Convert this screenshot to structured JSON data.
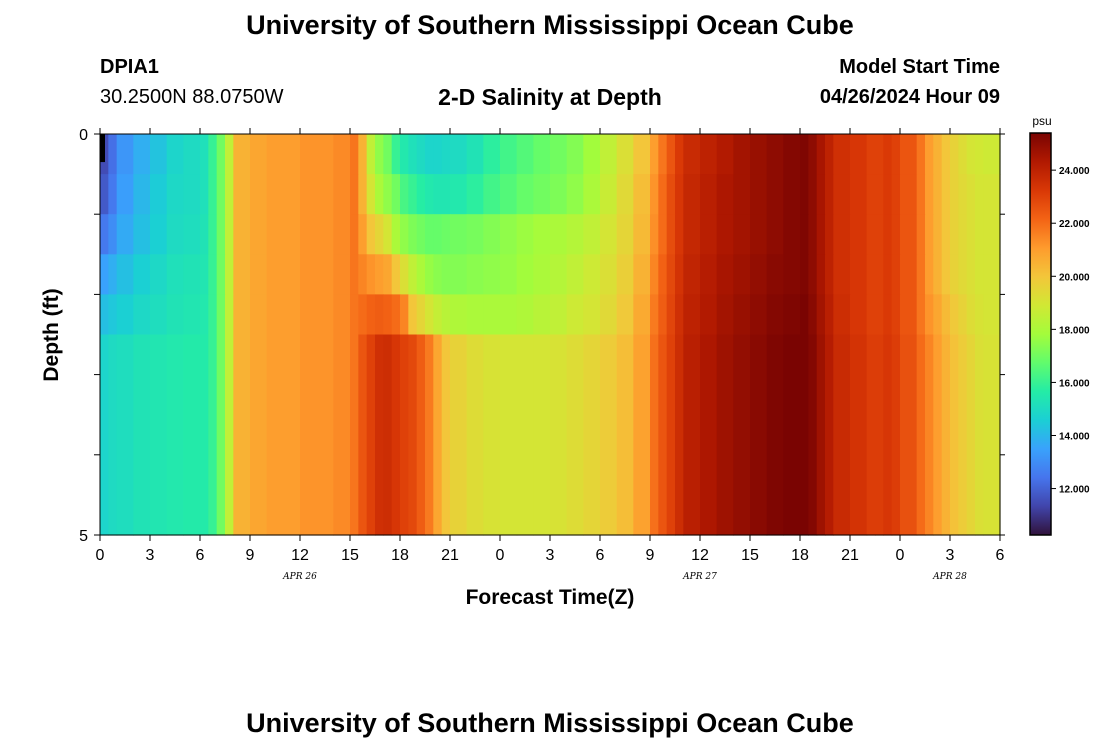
{
  "header": {
    "title": "University of Southern Mississippi Ocean Cube",
    "station": "DPIA1",
    "coords": "30.2500N  88.0750W",
    "subtitle": "2-D Salinity at Depth",
    "model_start_label": "Model Start Time",
    "model_start_value": "04/26/2024 Hour 09"
  },
  "footer": {
    "title": "University of Southern Mississippi Ocean Cube"
  },
  "chart_data": {
    "type": "heatmap",
    "xlabel": "Forecast Time(Z)",
    "ylabel": "Depth (ft)",
    "x_tick_labels": [
      "0",
      "3",
      "6",
      "9",
      "12",
      "15",
      "18",
      "21",
      "0",
      "3",
      "6",
      "9",
      "12",
      "15",
      "18",
      "21",
      "0",
      "3",
      "6"
    ],
    "x_tick_hours": [
      0,
      3,
      6,
      9,
      12,
      15,
      18,
      21,
      24,
      27,
      30,
      33,
      36,
      39,
      42,
      45,
      48,
      51,
      54
    ],
    "date_labels": [
      {
        "text": "APR 26",
        "hour": 12
      },
      {
        "text": "APR 27",
        "hour": 36
      },
      {
        "text": "APR 28",
        "hour": 51
      }
    ],
    "x_range_hours": [
      0,
      54
    ],
    "y_tick_labels": [
      "0",
      "5"
    ],
    "y_range_ft": [
      0,
      5
    ],
    "depth_levels_ft": [
      0.25,
      0.75,
      1.25,
      1.75,
      2.25,
      2.75
    ],
    "colorbar": {
      "unit": "psu",
      "range": [
        10.25,
        25.4
      ],
      "tick_labels": [
        "12.000",
        "14.000",
        "16.000",
        "18.000",
        "20.000",
        "22.000",
        "24.000"
      ],
      "tick_values": [
        12,
        14,
        16,
        18,
        20,
        22,
        24
      ],
      "colors": [
        "#30123b",
        "#4145ab",
        "#4675ed",
        "#39a2fc",
        "#1bcfd4",
        "#24eca6",
        "#61fc6c",
        "#a4fc3b",
        "#d1e834",
        "#f3c63a",
        "#fe9b2d",
        "#f36315",
        "#d93806",
        "#b11901",
        "#7a0402"
      ]
    },
    "times_hours": [
      0,
      0.5,
      1,
      2,
      3,
      4,
      5,
      6,
      6.5,
      7,
      7.5,
      8,
      9,
      10,
      12,
      14,
      15,
      15.5,
      16,
      16.5,
      17,
      17.5,
      18,
      18.5,
      19,
      19.5,
      20,
      20.5,
      21,
      22,
      23,
      24,
      25,
      26,
      27,
      28,
      29,
      30,
      31,
      32,
      33,
      33.5,
      34,
      34.5,
      35,
      36,
      37,
      38,
      39,
      40,
      41,
      42,
      42.5,
      43,
      43.5,
      44,
      45,
      46,
      46.5,
      47,
      47.5,
      48,
      49,
      49.5,
      50,
      50.5,
      51,
      51.5,
      52,
      52.5,
      53,
      54
    ],
    "salinity_psu": [
      [
        11.5,
        12.3,
        13.2,
        13.8,
        14.3,
        14.8,
        15.0,
        15.2,
        16.0,
        17.0,
        18.5,
        20.5,
        20.8,
        21.0,
        21.2,
        21.4,
        21.8,
        20.5,
        18.5,
        17.5,
        17.0,
        16.0,
        15.5,
        15.2,
        15.0,
        14.8,
        14.8,
        14.9,
        15.0,
        15.3,
        15.8,
        16.2,
        16.5,
        16.8,
        17.0,
        17.3,
        17.8,
        18.5,
        19.2,
        20.0,
        21.0,
        21.8,
        22.5,
        23.2,
        23.7,
        24.0,
        24.3,
        24.6,
        24.8,
        25.0,
        25.2,
        25.3,
        25.0,
        24.5,
        24.0,
        23.5,
        23.3,
        23.0,
        23.0,
        23.2,
        23.0,
        22.5,
        21.8,
        21.0,
        20.5,
        20.0,
        19.6,
        19.3,
        19.0,
        18.9,
        18.8,
        18.8
      ],
      [
        11.8,
        12.5,
        13.4,
        14.0,
        14.5,
        14.9,
        15.0,
        15.2,
        16.0,
        17.0,
        18.5,
        20.5,
        20.8,
        21.0,
        21.2,
        21.4,
        21.8,
        20.5,
        19.0,
        18.0,
        17.5,
        17.0,
        16.3,
        16.0,
        15.7,
        15.5,
        15.4,
        15.4,
        15.5,
        15.8,
        16.2,
        16.5,
        16.8,
        17.0,
        17.2,
        17.5,
        18.0,
        18.7,
        19.4,
        20.2,
        21.2,
        22.0,
        22.7,
        23.3,
        23.8,
        24.1,
        24.4,
        24.6,
        24.8,
        25.0,
        25.2,
        25.3,
        25.0,
        24.5,
        24.0,
        23.5,
        23.3,
        23.0,
        23.0,
        23.2,
        23.0,
        22.5,
        21.8,
        21.0,
        20.5,
        20.0,
        19.6,
        19.4,
        19.2,
        19.0,
        19.0,
        19.0
      ],
      [
        12.5,
        13.0,
        13.7,
        14.2,
        14.6,
        15.0,
        15.1,
        15.3,
        16.0,
        17.0,
        18.5,
        20.5,
        20.8,
        21.0,
        21.2,
        21.4,
        21.8,
        21.0,
        20.0,
        19.5,
        19.0,
        18.0,
        17.5,
        17.2,
        17.0,
        16.8,
        16.8,
        16.9,
        17.0,
        17.1,
        17.3,
        17.5,
        17.7,
        17.9,
        18.0,
        18.2,
        18.5,
        19.0,
        19.5,
        20.3,
        21.3,
        22.0,
        22.7,
        23.3,
        23.8,
        24.1,
        24.4,
        24.6,
        24.8,
        25.0,
        25.2,
        25.3,
        25.0,
        24.5,
        24.0,
        23.5,
        23.3,
        23.0,
        23.0,
        23.2,
        23.0,
        22.5,
        21.8,
        21.0,
        20.5,
        20.0,
        19.6,
        19.4,
        19.2,
        19.0,
        19.0,
        19.0
      ],
      [
        13.5,
        13.8,
        14.2,
        14.6,
        14.9,
        15.2,
        15.3,
        15.4,
        16.0,
        17.0,
        18.5,
        20.5,
        20.8,
        21.0,
        21.2,
        21.4,
        21.8,
        21.5,
        21.2,
        21.0,
        20.8,
        20.0,
        19.2,
        18.5,
        18.0,
        17.6,
        17.4,
        17.3,
        17.3,
        17.4,
        17.5,
        17.6,
        17.8,
        18.0,
        18.2,
        18.5,
        18.8,
        19.2,
        19.7,
        20.5,
        21.5,
        22.2,
        22.8,
        23.4,
        23.9,
        24.2,
        24.5,
        24.7,
        24.9,
        25.1,
        25.2,
        25.3,
        25.0,
        24.5,
        24.0,
        23.5,
        23.3,
        23.0,
        23.0,
        23.2,
        23.0,
        22.5,
        21.8,
        21.0,
        20.5,
        20.0,
        19.6,
        19.4,
        19.2,
        19.0,
        19.0,
        19.0
      ],
      [
        14.2,
        14.4,
        14.6,
        14.9,
        15.1,
        15.3,
        15.4,
        15.5,
        16.0,
        17.0,
        18.5,
        20.5,
        20.8,
        21.0,
        21.2,
        21.4,
        21.8,
        22.0,
        22.2,
        22.3,
        22.2,
        22.0,
        21.5,
        20.0,
        19.5,
        19.0,
        18.6,
        18.3,
        18.1,
        18.0,
        18.0,
        18.0,
        18.1,
        18.3,
        18.5,
        18.8,
        19.0,
        19.4,
        19.9,
        20.7,
        21.7,
        22.3,
        22.9,
        23.5,
        24.0,
        24.3,
        24.6,
        24.8,
        25.0,
        25.2,
        25.3,
        25.4,
        25.1,
        24.6,
        24.1,
        23.6,
        23.3,
        23.0,
        23.0,
        23.2,
        23.0,
        22.5,
        21.8,
        21.2,
        20.8,
        20.3,
        19.9,
        19.6,
        19.3,
        19.1,
        19.0,
        19.0
      ],
      [
        14.8,
        15.0,
        15.1,
        15.3,
        15.4,
        15.5,
        15.6,
        15.6,
        16.0,
        17.0,
        18.5,
        20.5,
        20.8,
        21.0,
        21.2,
        21.4,
        21.8,
        22.5,
        23.0,
        23.5,
        23.6,
        23.3,
        23.0,
        22.8,
        22.3,
        21.7,
        20.8,
        20.0,
        19.6,
        19.3,
        19.1,
        19.0,
        19.0,
        19.0,
        19.1,
        19.3,
        19.5,
        19.8,
        20.2,
        20.9,
        21.9,
        22.5,
        23.0,
        23.6,
        24.1,
        24.4,
        24.7,
        24.9,
        25.1,
        25.3,
        25.4,
        25.4,
        25.2,
        24.7,
        24.2,
        23.7,
        23.4,
        23.1,
        23.1,
        23.3,
        23.1,
        22.6,
        22.0,
        21.5,
        21.0,
        20.5,
        20.1,
        19.8,
        19.5,
        19.2,
        19.1,
        19.0
      ]
    ]
  }
}
